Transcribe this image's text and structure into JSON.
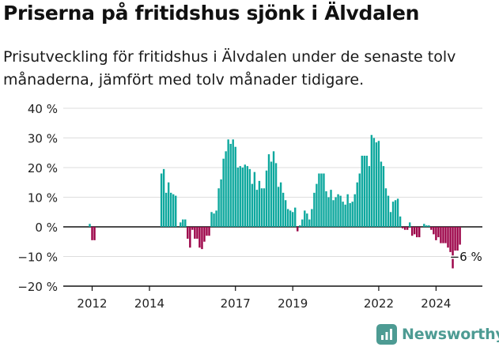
{
  "title": "Priserna på fritidshus sjönk i Älvdalen",
  "subtitle": "Prisutveckling för fritidshus i Älvdalen under de senaste tolv månaderna, jämfört med tolv månader tidigare.",
  "logo_text": "Newsworthy",
  "colors": {
    "positive": "#0ea89e",
    "negative": "#9b0046",
    "grid": "#dddddd",
    "axis": "#111111"
  },
  "chart_data": {
    "type": "bar",
    "title": "Priserna på fritidshus sjönk i Älvdalen",
    "ylim": [
      -20,
      40
    ],
    "y_ticks": [
      -20,
      -10,
      0,
      10,
      20,
      30,
      40
    ],
    "y_tick_labels": [
      "−20 %",
      "−10 %",
      "0 %",
      "10 %",
      "20 %",
      "30 %",
      "40 %"
    ],
    "x_tick_labels": [
      "2012",
      "2014",
      "2017",
      "2019",
      "2022",
      "2024"
    ],
    "x_tick_index": [
      1,
      25,
      61,
      85,
      121,
      145
    ],
    "grid": true,
    "annotation": {
      "text": "−6 %",
      "index": 154
    },
    "values": [
      1,
      -4.5,
      -4.5,
      null,
      null,
      null,
      null,
      null,
      null,
      null,
      null,
      null,
      null,
      null,
      null,
      null,
      null,
      null,
      null,
      null,
      null,
      null,
      null,
      null,
      null,
      null,
      null,
      null,
      null,
      null,
      18,
      19.5,
      11.5,
      15,
      11.5,
      11,
      10.5,
      null,
      1.5,
      2.5,
      2.5,
      -4,
      -7,
      -1,
      -4,
      -4,
      -7,
      -7.5,
      -5,
      -3,
      -3,
      5,
      4.5,
      5.5,
      13,
      16,
      23,
      25.5,
      29.5,
      28,
      29.5,
      27,
      20,
      20.5,
      20,
      21,
      20.5,
      19.5,
      14.5,
      18.5,
      12.5,
      15.5,
      13,
      13,
      19,
      24.5,
      22,
      25.5,
      21.5,
      13.5,
      15,
      11.5,
      9,
      6,
      5.5,
      5,
      6.5,
      -1.5,
      0.5,
      2.5,
      5.5,
      4.5,
      2.5,
      6,
      11.5,
      14.5,
      18,
      18,
      18,
      12,
      10,
      12.5,
      9,
      10,
      11,
      10.5,
      8.5,
      7.5,
      11,
      8,
      8.5,
      11,
      15,
      18,
      24,
      24,
      24,
      20.5,
      31,
      30,
      28.5,
      29,
      22,
      20.5,
      13,
      10.5,
      5,
      8.5,
      9,
      9.5,
      3.5,
      -0.5,
      -1,
      -1,
      1.5,
      -3,
      -2.5,
      -3.5,
      -3.5,
      0,
      1,
      0.5,
      0.5,
      -1,
      -2.5,
      -4.5,
      -3.5,
      -5.5,
      -5.5,
      -5.5,
      -7,
      -8.5,
      -14,
      -8,
      -8,
      -6
    ]
  }
}
